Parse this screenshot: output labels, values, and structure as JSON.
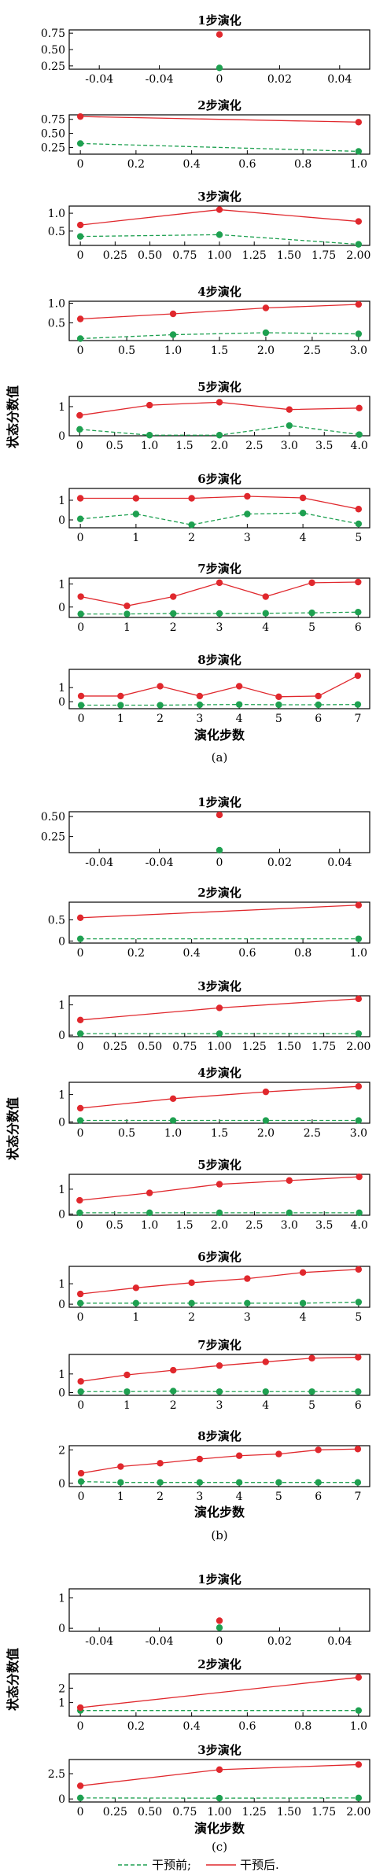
{
  "chart_data": [
    {
      "group": "a",
      "y_axis_label": "状态分数值",
      "x_axis_label": "演化步数",
      "caption": "(a)",
      "panels": [
        {
          "type": "line",
          "title": "1步演化",
          "xlim": [
            -0.05,
            0.05
          ],
          "ylim": [
            0.2,
            0.8
          ],
          "xticks": [
            "-0.04",
            "-0.04",
            "0",
            "0.02",
            "0.04"
          ],
          "yticks": [
            "0.25",
            "0.50",
            "0.75"
          ],
          "x": [
            0
          ],
          "series": [
            {
              "values": [
                0.73
              ]
            },
            {
              "values": [
                0.22
              ]
            }
          ]
        },
        {
          "type": "line",
          "title": "2步演化",
          "xlim": [
            -0.04,
            1.04
          ],
          "ylim": [
            0.13,
            0.83
          ],
          "xticks": [
            "0",
            "0.2",
            "0.4",
            "0.6",
            "0.8",
            "1.0"
          ],
          "yticks": [
            "0.25",
            "0.50",
            "0.75"
          ],
          "x": [
            0,
            1
          ],
          "series": [
            {
              "values": [
                0.8,
                0.7
              ]
            },
            {
              "values": [
                0.32,
                0.18
              ]
            }
          ]
        },
        {
          "type": "line",
          "title": "3步演化",
          "xlim": [
            -0.08,
            2.08
          ],
          "ylim": [
            0.1,
            1.2
          ],
          "xticks": [
            "0",
            "0.25",
            "0.50",
            "0.75",
            "1.00",
            "1.25",
            "1.50",
            "1.75",
            "2.00"
          ],
          "yticks": [
            "0.5",
            "1.0"
          ],
          "x": [
            0,
            1,
            2
          ],
          "series": [
            {
              "values": [
                0.67,
                1.1,
                0.77
              ]
            },
            {
              "values": [
                0.35,
                0.4,
                0.13
              ]
            }
          ]
        },
        {
          "type": "line",
          "title": "4步演化",
          "xlim": [
            -0.12,
            3.12
          ],
          "ylim": [
            0.05,
            1.05
          ],
          "xticks": [
            "0",
            "0.5",
            "1.0",
            "1.5",
            "2.0",
            "2.5",
            "3.0"
          ],
          "yticks": [
            "0.5",
            "1.0"
          ],
          "x": [
            0,
            1,
            2,
            3
          ],
          "series": [
            {
              "values": [
                0.6,
                0.73,
                0.88,
                0.97
              ]
            },
            {
              "values": [
                0.1,
                0.2,
                0.25,
                0.22
              ]
            }
          ]
        },
        {
          "type": "line",
          "title": "5步演化",
          "xlim": [
            -0.15,
            4.15
          ],
          "ylim": [
            0,
            1.35
          ],
          "xticks": [
            "0",
            "0.5",
            "1.0",
            "1.5",
            "2.0",
            "2.5",
            "3.0",
            "3.5",
            "4.0"
          ],
          "yticks": [
            "0",
            "1"
          ],
          "x": [
            0,
            1,
            2,
            3,
            4
          ],
          "series": [
            {
              "values": [
                0.7,
                1.05,
                1.15,
                0.9,
                0.95
              ]
            },
            {
              "values": [
                0.22,
                0.02,
                0.02,
                0.35,
                0.04
              ]
            }
          ]
        },
        {
          "type": "line",
          "title": "6步演化",
          "xlim": [
            -0.2,
            5.2
          ],
          "ylim": [
            -0.4,
            1.6
          ],
          "xticks": [
            "0",
            "1",
            "2",
            "3",
            "4",
            "5"
          ],
          "yticks": [
            "0",
            "1"
          ],
          "x": [
            0,
            1,
            2,
            3,
            4,
            5
          ],
          "series": [
            {
              "values": [
                1.1,
                1.1,
                1.1,
                1.2,
                1.12,
                0.55
              ]
            },
            {
              "values": [
                0.05,
                0.3,
                -0.25,
                0.3,
                0.35,
                -0.2
              ]
            }
          ]
        },
        {
          "type": "line",
          "title": "7步演化",
          "xlim": [
            -0.25,
            6.25
          ],
          "ylim": [
            -0.45,
            1.25
          ],
          "xticks": [
            "0",
            "1",
            "2",
            "3",
            "4",
            "5",
            "6"
          ],
          "yticks": [
            "0",
            "1"
          ],
          "x": [
            0,
            1,
            2,
            3,
            4,
            5,
            6
          ],
          "series": [
            {
              "values": [
                0.45,
                0.05,
                0.45,
                1.05,
                0.45,
                1.05,
                1.08
              ]
            },
            {
              "values": [
                -0.3,
                -0.3,
                -0.28,
                -0.28,
                -0.27,
                -0.25,
                -0.22
              ]
            }
          ]
        },
        {
          "type": "line",
          "title": "8步演化",
          "xlim": [
            -0.3,
            7.3
          ],
          "ylim": [
            -0.5,
            2.3
          ],
          "xticks": [
            "0",
            "1",
            "2",
            "3",
            "4",
            "5",
            "6",
            "7"
          ],
          "yticks": [
            "0",
            "1"
          ],
          "x": [
            0,
            1,
            2,
            3,
            4,
            5,
            6,
            7
          ],
          "series": [
            {
              "values": [
                0.4,
                0.4,
                1.1,
                0.4,
                1.1,
                0.35,
                0.4,
                1.85
              ]
            },
            {
              "values": [
                -0.25,
                -0.25,
                -0.25,
                -0.22,
                -0.2,
                -0.22,
                -0.22,
                -0.2
              ]
            }
          ]
        }
      ]
    },
    {
      "group": "b",
      "y_axis_label": "状态分数值",
      "x_axis_label": "演化步数",
      "caption": "(b)",
      "panels": [
        {
          "type": "line",
          "title": "1步演化",
          "xlim": [
            -0.05,
            0.05
          ],
          "ylim": [
            0.05,
            0.56
          ],
          "xticks": [
            "-0.04",
            "-0.04",
            "0",
            "0.02",
            "0.04"
          ],
          "yticks": [
            "0.25",
            "0.50"
          ],
          "x": [
            0
          ],
          "series": [
            {
              "values": [
                0.52
              ]
            },
            {
              "values": [
                0.08
              ]
            }
          ]
        },
        {
          "type": "line",
          "title": "2步演化",
          "xlim": [
            -0.04,
            1.04
          ],
          "ylim": [
            -0.05,
            0.92
          ],
          "xticks": [
            "0",
            "0.2",
            "0.4",
            "0.6",
            "0.8",
            "1.0"
          ],
          "yticks": [
            "0",
            "0.5"
          ],
          "x": [
            0,
            1
          ],
          "series": [
            {
              "values": [
                0.55,
                0.85
              ]
            },
            {
              "values": [
                0.05,
                0.05
              ]
            }
          ]
        },
        {
          "type": "line",
          "title": "3步演化",
          "xlim": [
            -0.08,
            2.08
          ],
          "ylim": [
            -0.05,
            1.3
          ],
          "xticks": [
            "0",
            "0.25",
            "0.50",
            "0.75",
            "1.00",
            "1.25",
            "1.50",
            "1.75",
            "2.00"
          ],
          "yticks": [
            "0",
            "1"
          ],
          "x": [
            0,
            1,
            2
          ],
          "series": [
            {
              "values": [
                0.5,
                0.9,
                1.2
              ]
            },
            {
              "values": [
                0.05,
                0.05,
                0.05
              ]
            }
          ]
        },
        {
          "type": "line",
          "title": "4步演化",
          "xlim": [
            -0.12,
            3.12
          ],
          "ylim": [
            -0.05,
            1.45
          ],
          "xticks": [
            "0",
            "0.5",
            "1.0",
            "1.5",
            "2.0",
            "2.5",
            "3.0"
          ],
          "yticks": [
            "0",
            "1"
          ],
          "x": [
            0,
            1,
            2,
            3
          ],
          "series": [
            {
              "values": [
                0.5,
                0.85,
                1.1,
                1.3
              ]
            },
            {
              "values": [
                0.05,
                0.05,
                0.05,
                0.05
              ]
            }
          ]
        },
        {
          "type": "line",
          "title": "5步演化",
          "xlim": [
            -0.15,
            4.15
          ],
          "ylim": [
            -0.05,
            1.6
          ],
          "xticks": [
            "0",
            "0.5",
            "1.0",
            "1.5",
            "2.0",
            "2.5",
            "3.0",
            "3.5",
            "4.0"
          ],
          "yticks": [
            "0",
            "1"
          ],
          "x": [
            0,
            1,
            2,
            3,
            4
          ],
          "series": [
            {
              "values": [
                0.55,
                0.85,
                1.2,
                1.35,
                1.5
              ]
            },
            {
              "values": [
                0.05,
                0.05,
                0.05,
                0.05,
                0.05
              ]
            }
          ]
        },
        {
          "type": "line",
          "title": "6步演化",
          "xlim": [
            -0.2,
            5.2
          ],
          "ylim": [
            -0.15,
            1.85
          ],
          "xticks": [
            "0",
            "1",
            "2",
            "3",
            "4",
            "5"
          ],
          "yticks": [
            "0",
            "1"
          ],
          "x": [
            0,
            1,
            2,
            3,
            4,
            5
          ],
          "series": [
            {
              "values": [
                0.5,
                0.8,
                1.05,
                1.25,
                1.55,
                1.7
              ]
            },
            {
              "values": [
                0.05,
                0.05,
                0.05,
                0.05,
                0.05,
                0.1
              ]
            }
          ]
        },
        {
          "type": "line",
          "title": "7步演化",
          "xlim": [
            -0.25,
            6.25
          ],
          "ylim": [
            -0.15,
            2.05
          ],
          "xticks": [
            "0",
            "1",
            "2",
            "3",
            "4",
            "5",
            "6"
          ],
          "yticks": [
            "0",
            "1"
          ],
          "x": [
            0,
            1,
            2,
            3,
            4,
            5,
            6
          ],
          "series": [
            {
              "values": [
                0.6,
                0.95,
                1.2,
                1.45,
                1.65,
                1.85,
                1.9
              ]
            },
            {
              "values": [
                0.05,
                0.05,
                0.08,
                0.05,
                0.05,
                0.05,
                0.05
              ]
            }
          ]
        },
        {
          "type": "line",
          "title": "8步演化",
          "xlim": [
            -0.3,
            7.3
          ],
          "ylim": [
            -0.2,
            2.25
          ],
          "xticks": [
            "0",
            "1",
            "2",
            "3",
            "4",
            "5",
            "6",
            "7"
          ],
          "yticks": [
            "0",
            "2"
          ],
          "x": [
            0,
            1,
            2,
            3,
            4,
            5,
            6,
            7
          ],
          "series": [
            {
              "values": [
                0.6,
                1.0,
                1.2,
                1.45,
                1.65,
                1.75,
                2.0,
                2.05
              ]
            },
            {
              "values": [
                0.1,
                0.05,
                0.05,
                0.05,
                0.05,
                0.05,
                0.05,
                0.05
              ]
            }
          ]
        }
      ]
    },
    {
      "group": "c",
      "y_axis_label": "状态分数值",
      "x_axis_label": "演化步数",
      "caption": "(c)",
      "panels": [
        {
          "type": "line",
          "title": "1步演化",
          "xlim": [
            -0.05,
            0.05
          ],
          "ylim": [
            -0.1,
            1.3
          ],
          "xticks": [
            "-0.04",
            "-0.04",
            "0",
            "0.02",
            "0.04"
          ],
          "yticks": [
            "0",
            "1"
          ],
          "x": [
            0
          ],
          "series": [
            {
              "values": [
                0.25
              ]
            },
            {
              "values": [
                0.02
              ]
            }
          ]
        },
        {
          "type": "line",
          "title": "2步演化",
          "xlim": [
            -0.04,
            1.04
          ],
          "ylim": [
            0.05,
            3.0
          ],
          "xticks": [
            "0",
            "0.2",
            "0.4",
            "0.6",
            "0.8",
            "1.0"
          ],
          "yticks": [
            "1",
            "2"
          ],
          "x": [
            0,
            1
          ],
          "series": [
            {
              "values": [
                0.65,
                2.75
              ]
            },
            {
              "values": [
                0.45,
                0.45
              ]
            }
          ]
        },
        {
          "type": "line",
          "title": "3步演化",
          "xlim": [
            -0.08,
            2.08
          ],
          "ylim": [
            -0.3,
            3.9
          ],
          "xticks": [
            "0",
            "0.25",
            "0.50",
            "0.75",
            "1.00",
            "1.25",
            "1.50",
            "1.75",
            "2.00"
          ],
          "yticks": [
            "0",
            "2.5"
          ],
          "x": [
            0,
            1,
            2
          ],
          "series": [
            {
              "values": [
                1.3,
                2.9,
                3.4
              ]
            },
            {
              "values": [
                0.1,
                0.08,
                0.1
              ]
            }
          ]
        }
      ]
    }
  ],
  "legend": {
    "before_label": "干预前;",
    "after_label": "干预后."
  },
  "colors": {
    "after": "#e0282d",
    "before": "#1ea050",
    "axis": "#000000"
  }
}
